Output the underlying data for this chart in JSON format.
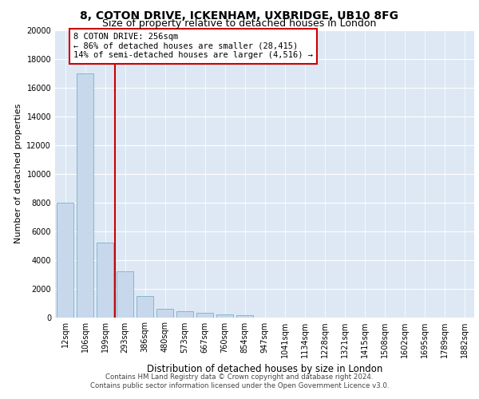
{
  "title1": "8, COTON DRIVE, ICKENHAM, UXBRIDGE, UB10 8FG",
  "title2": "Size of property relative to detached houses in London",
  "xlabel": "Distribution of detached houses by size in London",
  "ylabel": "Number of detached properties",
  "property_label": "8 COTON DRIVE: 256sqm",
  "annotation_line1": "← 86% of detached houses are smaller (28,415)",
  "annotation_line2": "14% of semi-detached houses are larger (4,516) →",
  "footer1": "Contains HM Land Registry data © Crown copyright and database right 2024.",
  "footer2": "Contains public sector information licensed under the Open Government Licence v3.0.",
  "bar_color": "#c8d8ec",
  "bar_edge_color": "#7aaecc",
  "vline_color": "#cc0000",
  "annotation_box_edgecolor": "#cc0000",
  "background_color": "#dde8f4",
  "grid_color": "#ffffff",
  "categories": [
    "12sqm",
    "106sqm",
    "199sqm",
    "293sqm",
    "386sqm",
    "480sqm",
    "573sqm",
    "667sqm",
    "760sqm",
    "854sqm",
    "947sqm",
    "1041sqm",
    "1134sqm",
    "1228sqm",
    "1321sqm",
    "1415sqm",
    "1508sqm",
    "1602sqm",
    "1695sqm",
    "1789sqm",
    "1882sqm"
  ],
  "values": [
    8000,
    17000,
    5200,
    3200,
    1500,
    600,
    400,
    300,
    200,
    150,
    0,
    0,
    0,
    0,
    0,
    0,
    0,
    0,
    0,
    0,
    0
  ],
  "ylim": [
    0,
    20000
  ],
  "yticks": [
    0,
    2000,
    4000,
    6000,
    8000,
    10000,
    12000,
    14000,
    16000,
    18000,
    20000
  ],
  "vline_x": 2.5,
  "title1_fontsize": 10,
  "title2_fontsize": 9,
  "ylabel_fontsize": 8,
  "xlabel_fontsize": 8.5,
  "tick_fontsize": 7,
  "annot_fontsize": 7.5,
  "footer_fontsize": 6.2
}
